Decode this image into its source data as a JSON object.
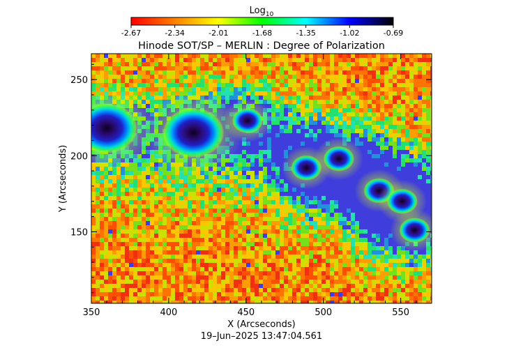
{
  "colorbar": {
    "label_base": "Log",
    "label_sub": "10",
    "ticks": [
      "-2.67",
      "-2.34",
      "-2.01",
      "-1.68",
      "-1.35",
      "-1.02",
      "-0.69"
    ],
    "stops": [
      "#ff0000",
      "#ff8000",
      "#ffff00",
      "#00ff00",
      "#00ffff",
      "#0000ff",
      "#000000"
    ]
  },
  "chart_data": {
    "type": "heatmap",
    "title": "Hinode SOT/SP – MERLIN : Degree of Polarization",
    "xlabel": "X (Arcseconds)",
    "ylabel": "Y (Arcseconds)",
    "xlim": [
      350,
      570
    ],
    "ylim": [
      103,
      267
    ],
    "xticks": [
      350,
      400,
      450,
      500,
      550
    ],
    "yticks": [
      150,
      200,
      250
    ],
    "colorscale": "log10 degree of polarization",
    "color_range": [
      -2.67,
      -0.69
    ],
    "features": [
      {
        "kind": "sunspot",
        "x": 360,
        "y": 218,
        "value": -0.8
      },
      {
        "kind": "sunspot",
        "x": 416,
        "y": 215,
        "value": -0.7
      },
      {
        "kind": "pore",
        "x": 451,
        "y": 223,
        "value": -1.0
      },
      {
        "kind": "pore",
        "x": 489,
        "y": 192,
        "value": -1.0
      },
      {
        "kind": "pore",
        "x": 510,
        "y": 198,
        "value": -1.0
      },
      {
        "kind": "pore",
        "x": 536,
        "y": 177,
        "value": -0.9
      },
      {
        "kind": "pore",
        "x": 551,
        "y": 170,
        "value": -0.9
      },
      {
        "kind": "pore",
        "x": 559,
        "y": 151,
        "value": -1.0
      }
    ]
  },
  "timestamp": "19–Jun–2025 13:47:04.561"
}
